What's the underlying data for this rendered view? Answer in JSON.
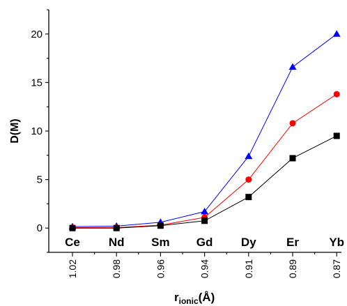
{
  "chart_data": {
    "type": "line",
    "categories": [
      "Ce",
      "Nd",
      "Sm",
      "Gd",
      "Dy",
      "Er",
      "Yb"
    ],
    "x_labels": [
      "1.02",
      "0.98",
      "0.96",
      "0.94",
      "0.91",
      "0.89",
      "0.87"
    ],
    "ylabel": "D(M)",
    "xlabel_main": "r",
    "xlabel_sub": "ionic",
    "xlabel_unit": "(Å)",
    "yticks": [
      "0",
      "5",
      "10",
      "15",
      "20"
    ],
    "ylim": [
      -2.5,
      22.5
    ],
    "grid": false,
    "legend": "none",
    "series": [
      {
        "marker": "triangle",
        "color": "#0000ff",
        "values": [
          0.15,
          0.2,
          0.6,
          1.7,
          7.4,
          16.6,
          20.0
        ]
      },
      {
        "marker": "circle",
        "color": "#ff0000",
        "values": [
          0.05,
          0.05,
          0.3,
          1.1,
          5.0,
          10.8,
          13.8
        ]
      },
      {
        "marker": "square",
        "color": "#000000",
        "values": [
          0.0,
          0.0,
          0.25,
          0.75,
          3.2,
          7.2,
          9.5
        ]
      }
    ]
  }
}
